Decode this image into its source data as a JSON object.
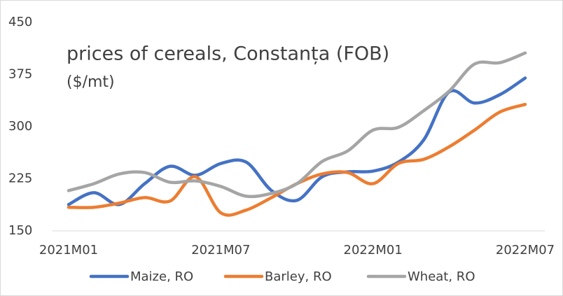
{
  "chart_data": {
    "type": "line",
    "title": "prices of cereals, Constanța (FOB)",
    "subtitle": "($/mt)",
    "categories": [
      "2021M01",
      null,
      null,
      null,
      null,
      null,
      "2021M07",
      null,
      null,
      null,
      null,
      null,
      "2022M01",
      null,
      null,
      null,
      null,
      null,
      "2022M07"
    ],
    "series": [
      {
        "name": "Maize, RO",
        "color": "#4472c4",
        "values": [
          188,
          205,
          188,
          218,
          243,
          230,
          247,
          249,
          208,
          194,
          228,
          235,
          236,
          249,
          281,
          350,
          334,
          346,
          370
        ]
      },
      {
        "name": "Barley, RO",
        "color": "#ed7d31",
        "values": [
          184,
          184,
          190,
          198,
          193,
          228,
          176,
          180,
          198,
          218,
          232,
          234,
          218,
          247,
          253,
          271,
          295,
          321,
          332
        ]
      },
      {
        "name": "Wheat, RO",
        "color": "#a5a5a5",
        "values": [
          208,
          218,
          232,
          234,
          220,
          222,
          214,
          200,
          204,
          218,
          250,
          265,
          295,
          299,
          323,
          351,
          390,
          392,
          406
        ]
      }
    ],
    "ylim": [
      150,
      450
    ],
    "yticks": [
      150,
      225,
      300,
      375,
      450
    ],
    "grid": false,
    "legend": "bottom"
  }
}
